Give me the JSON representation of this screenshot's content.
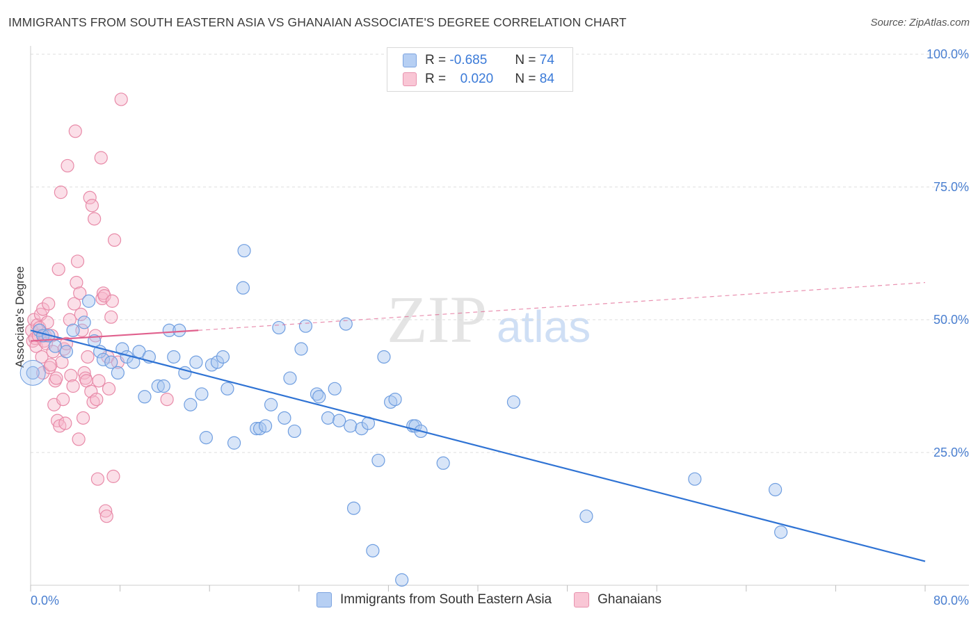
{
  "title": "IMMIGRANTS FROM SOUTH EASTERN ASIA VS GHANAIAN ASSOCIATE'S DEGREE CORRELATION CHART",
  "source": "Source: ZipAtlas.com",
  "watermark": {
    "zip": "ZIP",
    "atlas": "atlas"
  },
  "legend": {
    "rows": [
      {
        "r_label": "R =",
        "r_value": "-0.685",
        "n_label": "N =",
        "n_value": "74"
      },
      {
        "r_label": "R =",
        "r_value": "0.020",
        "n_label": "N =",
        "n_value": "84"
      }
    ]
  },
  "series_legend": [
    "Immigrants from South Eastern Asia",
    "Ghanaians"
  ],
  "colors": {
    "blue_fill": "#a8c6f0",
    "blue_stroke": "#6f9ee0",
    "blue_line": "#2f73d4",
    "pink_fill": "#f7b9cc",
    "pink_stroke": "#e88aa8",
    "pink_line": "#e0608d",
    "tick_label": "#4a7fd0"
  },
  "chart_data": {
    "type": "scatter",
    "xlabel": "",
    "ylabel": "Associate's Degree",
    "xlim": [
      0,
      80
    ],
    "ylim": [
      0,
      100
    ],
    "x_tick_labels": [
      "0.0%",
      "80.0%"
    ],
    "y_ticks": [
      25,
      50,
      75,
      100
    ],
    "y_tick_labels": [
      "25.0%",
      "50.0%",
      "75.0%",
      "100.0%"
    ],
    "series": [
      {
        "name": "Immigrants from South Eastern Asia",
        "trend": {
          "x": [
            0,
            80
          ],
          "y": [
            48,
            4.5
          ]
        },
        "points": [
          [
            0.2,
            40
          ],
          [
            0.8,
            48
          ],
          [
            1.1,
            47
          ],
          [
            1.6,
            47
          ],
          [
            2.2,
            45
          ],
          [
            3.2,
            44
          ],
          [
            3.8,
            48
          ],
          [
            4.8,
            49.5
          ],
          [
            5.2,
            53.5
          ],
          [
            5.7,
            46
          ],
          [
            6.2,
            44
          ],
          [
            6.5,
            42.5
          ],
          [
            7.2,
            42
          ],
          [
            7.8,
            40
          ],
          [
            8.2,
            44.5
          ],
          [
            8.6,
            43
          ],
          [
            9.2,
            42
          ],
          [
            9.7,
            44
          ],
          [
            10.2,
            35.5
          ],
          [
            10.6,
            43
          ],
          [
            11.4,
            37.5
          ],
          [
            11.9,
            37.5
          ],
          [
            12.4,
            48
          ],
          [
            12.8,
            43
          ],
          [
            13.3,
            48
          ],
          [
            13.8,
            40
          ],
          [
            14.3,
            34
          ],
          [
            14.8,
            42
          ],
          [
            15.3,
            36
          ],
          [
            15.7,
            27.8
          ],
          [
            16.2,
            41.5
          ],
          [
            16.7,
            42
          ],
          [
            17.2,
            43
          ],
          [
            17.6,
            37
          ],
          [
            18.2,
            26.8
          ],
          [
            19.0,
            56
          ],
          [
            19.1,
            63
          ],
          [
            20.2,
            29.5
          ],
          [
            20.5,
            29.5
          ],
          [
            21.0,
            30
          ],
          [
            21.5,
            34
          ],
          [
            22.2,
            48.5
          ],
          [
            22.7,
            31.5
          ],
          [
            23.2,
            39
          ],
          [
            23.6,
            29
          ],
          [
            24.2,
            44.5
          ],
          [
            24.6,
            48.8
          ],
          [
            25.6,
            36
          ],
          [
            25.8,
            35.5
          ],
          [
            26.6,
            31.5
          ],
          [
            27.2,
            37
          ],
          [
            27.6,
            31
          ],
          [
            28.2,
            49.2
          ],
          [
            28.6,
            30
          ],
          [
            28.9,
            14.5
          ],
          [
            29.6,
            29.5
          ],
          [
            30.2,
            30.5
          ],
          [
            30.6,
            6.5
          ],
          [
            31.1,
            23.5
          ],
          [
            31.6,
            43
          ],
          [
            32.2,
            34.5
          ],
          [
            32.6,
            35
          ],
          [
            33.2,
            1
          ],
          [
            34.2,
            30
          ],
          [
            34.4,
            30
          ],
          [
            34.9,
            29
          ],
          [
            36.9,
            23
          ],
          [
            43.2,
            34.5
          ],
          [
            49.7,
            13
          ],
          [
            59.4,
            20
          ],
          [
            66.6,
            18
          ],
          [
            67.1,
            10
          ]
        ]
      },
      {
        "name": "Ghanaians",
        "trend": {
          "x": [
            0,
            15
          ],
          "y": [
            46,
            48
          ]
        },
        "trend_ext": {
          "x": [
            15,
            80
          ],
          "y": [
            48,
            57
          ]
        },
        "points": [
          [
            0.1,
            48
          ],
          [
            0.2,
            46
          ],
          [
            0.3,
            50
          ],
          [
            0.4,
            46.5
          ],
          [
            0.5,
            45
          ],
          [
            0.6,
            49
          ],
          [
            0.7,
            47
          ],
          [
            0.8,
            48.5
          ],
          [
            0.9,
            51
          ],
          [
            1.0,
            43
          ],
          [
            1.1,
            52
          ],
          [
            1.1,
            40
          ],
          [
            1.2,
            46
          ],
          [
            1.3,
            47
          ],
          [
            1.4,
            45.5
          ],
          [
            1.5,
            49.5
          ],
          [
            1.6,
            53
          ],
          [
            1.7,
            41
          ],
          [
            1.8,
            41.5
          ],
          [
            1.9,
            47
          ],
          [
            2.0,
            44
          ],
          [
            2.1,
            34
          ],
          [
            2.2,
            38.5
          ],
          [
            2.3,
            39
          ],
          [
            2.4,
            31
          ],
          [
            2.5,
            59.5
          ],
          [
            2.6,
            30
          ],
          [
            2.7,
            74
          ],
          [
            2.8,
            42
          ],
          [
            2.9,
            35
          ],
          [
            3.0,
            44.5
          ],
          [
            3.1,
            30.5
          ],
          [
            3.2,
            45.5
          ],
          [
            3.3,
            79
          ],
          [
            3.5,
            50
          ],
          [
            3.6,
            39.5
          ],
          [
            3.8,
            37.5
          ],
          [
            3.9,
            53
          ],
          [
            4.0,
            85.5
          ],
          [
            4.1,
            57
          ],
          [
            4.2,
            61
          ],
          [
            4.3,
            27.5
          ],
          [
            4.4,
            55
          ],
          [
            4.5,
            51
          ],
          [
            4.6,
            48
          ],
          [
            4.7,
            31.5
          ],
          [
            4.8,
            40
          ],
          [
            4.9,
            39
          ],
          [
            5.0,
            38.5
          ],
          [
            5.1,
            43
          ],
          [
            5.3,
            73
          ],
          [
            5.4,
            36.5
          ],
          [
            5.5,
            71.5
          ],
          [
            5.6,
            34.5
          ],
          [
            5.7,
            69
          ],
          [
            5.8,
            47
          ],
          [
            5.9,
            35
          ],
          [
            6.0,
            20
          ],
          [
            6.1,
            38.5
          ],
          [
            6.3,
            80.5
          ],
          [
            6.4,
            54
          ],
          [
            6.5,
            55
          ],
          [
            6.6,
            54.5
          ],
          [
            6.7,
            14
          ],
          [
            6.8,
            13
          ],
          [
            6.9,
            43
          ],
          [
            7.0,
            37
          ],
          [
            7.2,
            50.5
          ],
          [
            7.3,
            53.5
          ],
          [
            7.4,
            20.5
          ],
          [
            7.5,
            65
          ],
          [
            7.8,
            42
          ],
          [
            8.1,
            91.5
          ],
          [
            12.2,
            35
          ]
        ]
      }
    ]
  }
}
